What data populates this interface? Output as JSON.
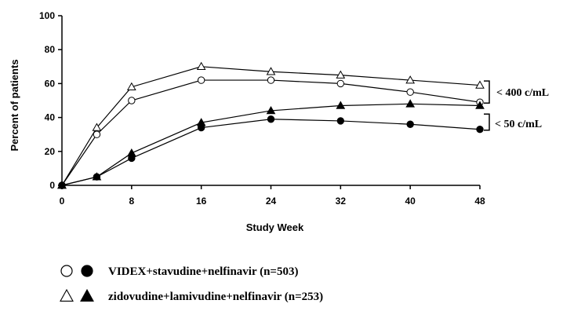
{
  "chart_data": {
    "type": "line",
    "xlabel": "Study Week",
    "ylabel": "Percent of patients",
    "xlim": [
      0,
      48
    ],
    "ylim": [
      0,
      100
    ],
    "x_ticks": [
      "0",
      "8",
      "16",
      "24",
      "32",
      "40",
      "48"
    ],
    "y_ticks": [
      "0",
      "20",
      "40",
      "60",
      "80",
      "100"
    ],
    "x": [
      0,
      4,
      8,
      16,
      24,
      32,
      40,
      48
    ],
    "series": [
      {
        "marker": "open-triangle",
        "threshold": "< 400 c/mL",
        "regimen": "zidovudine+lamivudine+nelfinavir (n=253)",
        "values": [
          0,
          34,
          58,
          70,
          67,
          65,
          62,
          59
        ]
      },
      {
        "marker": "open-circle",
        "threshold": "< 400 c/mL",
        "regimen": "VIDEX+stavudine+nelfinavir (n=503)",
        "values": [
          0,
          30,
          50,
          62,
          62,
          60,
          55,
          49
        ]
      },
      {
        "marker": "filled-triangle",
        "threshold": "< 50 c/mL",
        "regimen": "zidovudine+lamivudine+nelfinavir (n=253)",
        "values": [
          0,
          5,
          19,
          37,
          44,
          47,
          48,
          47
        ]
      },
      {
        "marker": "filled-circle",
        "threshold": "< 50 c/mL",
        "regimen": "VIDEX+stavudine+nelfinavir (n=503)",
        "values": [
          0,
          5,
          16,
          34,
          39,
          38,
          36,
          33
        ]
      }
    ],
    "annotations": [
      "< 400 c/mL",
      "< 50 c/mL"
    ],
    "legend": [
      {
        "markers": [
          "open-circle",
          "filled-circle"
        ],
        "label": "VIDEX+stavudine+nelfinavir (n=503)"
      },
      {
        "markers": [
          "open-triangle",
          "filled-triangle"
        ],
        "label": "zidovudine+lamivudine+nelfinavir (n=253)"
      }
    ],
    "grid": false,
    "legend_position": "bottom"
  }
}
